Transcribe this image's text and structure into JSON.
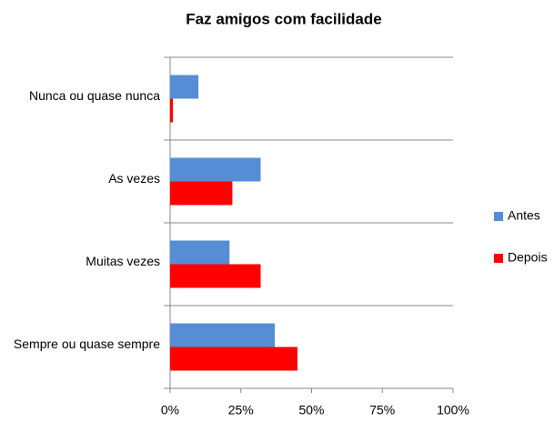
{
  "chart_data": {
    "type": "bar",
    "orientation": "horizontal",
    "title": "Faz amigos com facilidade",
    "categories": [
      "Nunca ou quase nunca",
      "As vezes",
      "Muitas vezes",
      "Sempre ou quase sempre"
    ],
    "series": [
      {
        "name": "Antes",
        "color": "#558ed5",
        "values": [
          10,
          32,
          21,
          37
        ]
      },
      {
        "name": "Depois",
        "color": "#ff0000",
        "values": [
          1,
          22,
          32,
          45
        ]
      }
    ],
    "xlim": [
      0,
      100
    ],
    "xticks": [
      {
        "value": 0,
        "label": "0%"
      },
      {
        "value": 25,
        "label": "25%"
      },
      {
        "value": 50,
        "label": "50%"
      },
      {
        "value": 75,
        "label": "75%"
      },
      {
        "value": 100,
        "label": "100%"
      }
    ],
    "legend": "right",
    "grid": true
  }
}
